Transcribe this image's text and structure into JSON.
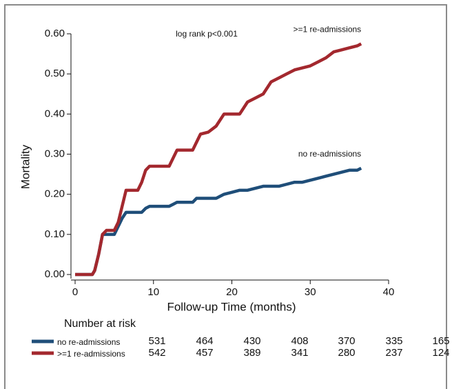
{
  "chart_data": {
    "type": "line",
    "x_label": "Follow-up Time (months)",
    "y_label": "Mortality",
    "annotation": "log rank p<0.001",
    "x": [
      0,
      2.2,
      2.5,
      3,
      3.5,
      4,
      5,
      5.5,
      6,
      6.5,
      8,
      8.5,
      9,
      9.5,
      12,
      12.5,
      13,
      15,
      15.5,
      16,
      17,
      18,
      19,
      20,
      21,
      22,
      23,
      24,
      25,
      26,
      27,
      28,
      29,
      30,
      31,
      32,
      33,
      34,
      35,
      36,
      36.5
    ],
    "series": [
      {
        "name": "no re-admissions",
        "color": "#1f4e79",
        "values": [
          0,
          0,
          0.01,
          0.05,
          0.1,
          0.1,
          0.1,
          0.12,
          0.14,
          0.155,
          0.155,
          0.155,
          0.165,
          0.17,
          0.17,
          0.175,
          0.18,
          0.18,
          0.19,
          0.19,
          0.19,
          0.19,
          0.2,
          0.205,
          0.21,
          0.21,
          0.215,
          0.22,
          0.22,
          0.22,
          0.225,
          0.23,
          0.23,
          0.235,
          0.24,
          0.245,
          0.25,
          0.255,
          0.26,
          0.26,
          0.265
        ]
      },
      {
        "name": ">=1 re-admissions",
        "color": "#a3282e",
        "values": [
          0,
          0,
          0.01,
          0.05,
          0.1,
          0.11,
          0.11,
          0.13,
          0.17,
          0.21,
          0.21,
          0.23,
          0.26,
          0.27,
          0.27,
          0.29,
          0.31,
          0.31,
          0.33,
          0.35,
          0.355,
          0.37,
          0.4,
          0.4,
          0.4,
          0.43,
          0.44,
          0.45,
          0.48,
          0.49,
          0.5,
          0.51,
          0.515,
          0.52,
          0.53,
          0.54,
          0.555,
          0.56,
          0.565,
          0.57,
          0.575
        ]
      }
    ],
    "xlim": [
      0,
      40
    ],
    "xticks": [
      0,
      10,
      20,
      30,
      40
    ],
    "ylim": [
      0,
      0.6
    ],
    "yticks": [
      {
        "value": 0,
        "label": "0.00"
      },
      {
        "value": 0.1,
        "label": "0.10"
      },
      {
        "value": 0.2,
        "label": "0.20"
      },
      {
        "value": 0.3,
        "label": "0.30"
      },
      {
        "value": 0.4,
        "label": "0.40"
      },
      {
        "value": 0.5,
        "label": "0.50"
      },
      {
        "value": 0.6,
        "label": "0.60"
      }
    ],
    "risk_table": {
      "title": "Number at risk",
      "rows": [
        [
          531,
          464,
          430,
          408,
          370,
          335,
          165
        ],
        [
          542,
          457,
          389,
          341,
          280,
          237,
          124
        ]
      ]
    }
  }
}
